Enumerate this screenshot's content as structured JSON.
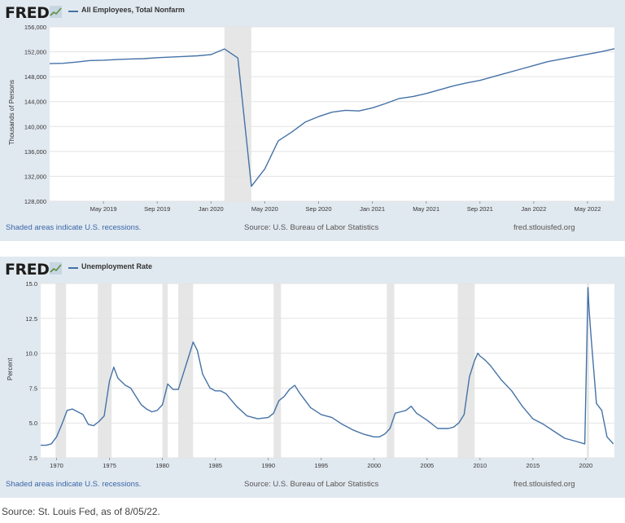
{
  "logo": {
    "text": "FRED"
  },
  "charts": [
    {
      "title": "All Employees, Total Nonfarm",
      "ylabel": "Thousands of Persons",
      "recession_note": "Shaded areas indicate U.S. recessions.",
      "source": "Source: U.S. Bureau of Labor Statistics",
      "site": "fred.stlouisfed.org",
      "line_color": "#4572a7"
    },
    {
      "title": "Unemployment Rate",
      "ylabel": "Percent",
      "recession_note": "Shaded areas indicate U.S. recessions.",
      "source": "Source: U.S. Bureau of Labor Statistics",
      "site": "fred.stlouisfed.org",
      "line_color": "#4572a7"
    }
  ],
  "footer": {
    "source": "Source: St. Louis Fed, as of 8/05/22."
  },
  "chart_data": [
    {
      "type": "line",
      "title": "All Employees, Total Nonfarm",
      "ylabel": "Thousands of Persons",
      "xlabel": "",
      "xlim": [
        "2019-01",
        "2022-07"
      ],
      "ylim": [
        128000,
        156000
      ],
      "yticks": [
        128000,
        132000,
        136000,
        140000,
        144000,
        148000,
        152000,
        156000
      ],
      "ytick_labels": [
        "128,000",
        "132,000",
        "136,000",
        "140,000",
        "144,000",
        "148,000",
        "152,000",
        "156,000"
      ],
      "xticks": [
        "2019-05",
        "2019-09",
        "2020-01",
        "2020-05",
        "2020-09",
        "2021-01",
        "2021-05",
        "2021-09",
        "2022-01",
        "2022-05"
      ],
      "xtick_labels": [
        "May 2019",
        "Sep 2019",
        "Jan 2020",
        "May 2020",
        "Sep 2020",
        "Jan 2021",
        "May 2021",
        "Sep 2021",
        "Jan 2022",
        "May 2022"
      ],
      "recessions": [
        [
          "2020-02",
          "2020-04"
        ]
      ],
      "grid": true,
      "series": [
        {
          "x": [
            "2019-01",
            "2019-02",
            "2019-03",
            "2019-04",
            "2019-05",
            "2019-06",
            "2019-07",
            "2019-08",
            "2019-09",
            "2019-10",
            "2019-11",
            "2019-12",
            "2020-01",
            "2020-02",
            "2020-03",
            "2020-04",
            "2020-05",
            "2020-06",
            "2020-07",
            "2020-08",
            "2020-09",
            "2020-10",
            "2020-11",
            "2020-12",
            "2021-01",
            "2021-02",
            "2021-03",
            "2021-04",
            "2021-05",
            "2021-06",
            "2021-07",
            "2021-08",
            "2021-09",
            "2021-10",
            "2021-11",
            "2021-12",
            "2022-01",
            "2022-02",
            "2022-03",
            "2022-04",
            "2022-05",
            "2022-06",
            "2022-07"
          ],
          "y": [
            150100,
            150150,
            150350,
            150600,
            150650,
            150750,
            150850,
            150900,
            151050,
            151150,
            151250,
            151350,
            151550,
            152450,
            151000,
            130400,
            133200,
            137700,
            139100,
            140700,
            141600,
            142300,
            142600,
            142500,
            143000,
            143700,
            144500,
            144800,
            145300,
            145900,
            146500,
            147000,
            147400,
            148000,
            148600,
            149200,
            149800,
            150400,
            150800,
            151200,
            151600,
            152000,
            152500
          ]
        }
      ]
    },
    {
      "type": "line",
      "title": "Unemployment Rate",
      "ylabel": "Percent",
      "xlabel": "",
      "xlim": [
        1968.5,
        2022.7
      ],
      "ylim": [
        2.5,
        15.0
      ],
      "yticks": [
        2.5,
        5.0,
        7.5,
        10.0,
        12.5,
        15.0
      ],
      "ytick_labels": [
        "2.5",
        "5.0",
        "7.5",
        "10.0",
        "12.5",
        "15.0"
      ],
      "xticks": [
        1970,
        1975,
        1980,
        1985,
        1990,
        1995,
        2000,
        2005,
        2010,
        2015,
        2020
      ],
      "xtick_labels": [
        "1970",
        "1975",
        "1980",
        "1985",
        "1990",
        "1995",
        "2000",
        "2005",
        "2010",
        "2015",
        "2020"
      ],
      "recessions": [
        [
          1969.9,
          1970.9
        ],
        [
          1973.9,
          1975.2
        ],
        [
          1980.0,
          1980.5
        ],
        [
          1981.5,
          1982.9
        ],
        [
          1990.5,
          1991.2
        ],
        [
          2001.2,
          2001.9
        ],
        [
          2007.9,
          2009.5
        ],
        [
          2020.1,
          2020.3
        ]
      ],
      "grid": true,
      "series": [
        {
          "x": [
            1968.5,
            1969.0,
            1969.5,
            1970.0,
            1970.5,
            1971.0,
            1971.5,
            1972.0,
            1972.5,
            1973.0,
            1973.5,
            1974.0,
            1974.5,
            1975.0,
            1975.4,
            1975.8,
            1976.5,
            1977.0,
            1977.5,
            1978.0,
            1978.5,
            1979.0,
            1979.5,
            1980.0,
            1980.5,
            1981.0,
            1981.5,
            1982.0,
            1982.5,
            1982.9,
            1983.3,
            1983.8,
            1984.5,
            1985.0,
            1985.5,
            1986.0,
            1987.0,
            1988.0,
            1989.0,
            1990.0,
            1990.5,
            1991.0,
            1991.5,
            1992.0,
            1992.5,
            1993.0,
            1994.0,
            1995.0,
            1996.0,
            1997.0,
            1998.0,
            1999.0,
            2000.0,
            2000.5,
            2001.0,
            2001.5,
            2002.0,
            2002.5,
            2003.0,
            2003.5,
            2004.0,
            2005.0,
            2006.0,
            2007.0,
            2007.5,
            2008.0,
            2008.5,
            2009.0,
            2009.5,
            2009.8,
            2010.0,
            2010.5,
            2011.0,
            2012.0,
            2013.0,
            2014.0,
            2015.0,
            2016.0,
            2017.0,
            2018.0,
            2019.0,
            2019.9,
            2020.2,
            2020.3,
            2020.5,
            2021.0,
            2021.5,
            2022.0,
            2022.6
          ],
          "y": [
            3.4,
            3.4,
            3.5,
            4.0,
            4.9,
            5.9,
            6.0,
            5.8,
            5.6,
            4.9,
            4.8,
            5.1,
            5.5,
            8.0,
            9.0,
            8.2,
            7.7,
            7.5,
            6.9,
            6.3,
            6.0,
            5.8,
            5.9,
            6.3,
            7.8,
            7.4,
            7.4,
            8.6,
            9.8,
            10.8,
            10.2,
            8.5,
            7.5,
            7.3,
            7.3,
            7.1,
            6.2,
            5.5,
            5.3,
            5.4,
            5.7,
            6.6,
            6.9,
            7.4,
            7.7,
            7.1,
            6.1,
            5.6,
            5.4,
            4.9,
            4.5,
            4.2,
            4.0,
            4.0,
            4.2,
            4.6,
            5.7,
            5.8,
            5.9,
            6.2,
            5.7,
            5.2,
            4.6,
            4.6,
            4.7,
            5.0,
            5.6,
            8.3,
            9.5,
            10.0,
            9.8,
            9.5,
            9.1,
            8.1,
            7.3,
            6.2,
            5.3,
            4.9,
            4.4,
            3.9,
            3.7,
            3.5,
            14.7,
            13.2,
            11.1,
            6.4,
            5.9,
            4.0,
            3.5
          ]
        }
      ]
    }
  ]
}
